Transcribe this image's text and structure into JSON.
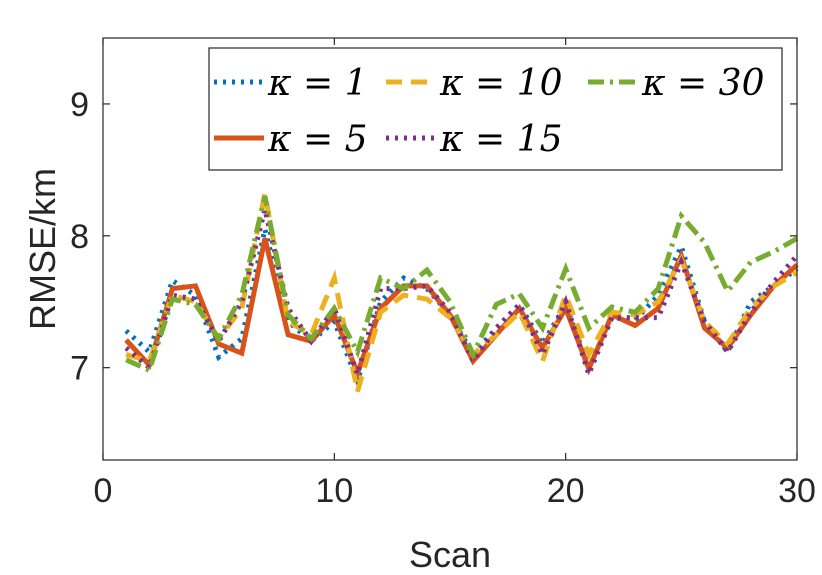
{
  "chart_data": {
    "type": "line",
    "title": "",
    "xlabel": "Scan",
    "ylabel": "RMSE/km",
    "xlim": [
      0,
      30
    ],
    "ylim": [
      6.3,
      9.5
    ],
    "xticks": [
      0,
      10,
      20,
      30
    ],
    "yticks": [
      7,
      8,
      9
    ],
    "grid": false,
    "legend_position": "top-right",
    "x": [
      1,
      2,
      3,
      4,
      5,
      6,
      7,
      8,
      9,
      10,
      11,
      12,
      13,
      14,
      15,
      16,
      17,
      18,
      19,
      20,
      21,
      22,
      23,
      24,
      25,
      26,
      27,
      28,
      29,
      30
    ],
    "series": [
      {
        "name": "κ = 1",
        "color": "#0072BD",
        "dash": "dotted",
        "values": [
          7.28,
          7.12,
          7.66,
          7.55,
          7.08,
          7.22,
          8.05,
          7.35,
          7.2,
          7.35,
          6.9,
          7.5,
          7.68,
          7.6,
          7.4,
          7.1,
          7.3,
          7.48,
          7.18,
          7.48,
          7.0,
          7.38,
          7.36,
          7.55,
          7.92,
          7.35,
          7.12,
          7.5,
          7.62,
          7.75
        ]
      },
      {
        "name": "κ = 5",
        "color": "#D95319",
        "dash": "solid",
        "values": [
          7.21,
          7.02,
          7.6,
          7.62,
          7.18,
          7.11,
          7.98,
          7.25,
          7.2,
          7.4,
          6.96,
          7.45,
          7.62,
          7.62,
          7.4,
          7.05,
          7.25,
          7.45,
          7.15,
          7.45,
          6.99,
          7.4,
          7.32,
          7.45,
          7.85,
          7.3,
          7.15,
          7.4,
          7.62,
          7.78
        ]
      },
      {
        "name": "κ = 10",
        "color": "#EDB120",
        "dash": "dashed",
        "values": [
          7.1,
          7.05,
          7.55,
          7.5,
          7.22,
          7.45,
          8.32,
          7.35,
          7.25,
          7.68,
          6.82,
          7.42,
          7.55,
          7.52,
          7.38,
          7.1,
          7.25,
          7.42,
          7.05,
          7.55,
          7.1,
          7.42,
          7.4,
          7.5,
          7.82,
          7.35,
          7.18,
          7.45,
          7.62,
          7.72
        ]
      },
      {
        "name": "κ = 15",
        "color": "#7E2F8E",
        "dash": "dotted",
        "values": [
          7.15,
          7.0,
          7.55,
          7.52,
          7.2,
          7.5,
          8.2,
          7.45,
          7.2,
          7.45,
          6.95,
          7.6,
          7.6,
          7.62,
          7.42,
          7.05,
          7.3,
          7.48,
          7.1,
          7.5,
          6.95,
          7.38,
          7.38,
          7.38,
          7.8,
          7.35,
          7.12,
          7.42,
          7.65,
          7.85
        ]
      },
      {
        "name": "κ = 30",
        "color": "#77AC30",
        "dash": "dashdot",
        "values": [
          7.06,
          6.98,
          7.52,
          7.48,
          7.22,
          7.55,
          8.3,
          7.4,
          7.22,
          7.45,
          7.12,
          7.68,
          7.6,
          7.74,
          7.5,
          7.1,
          7.48,
          7.56,
          7.3,
          7.75,
          7.3,
          7.46,
          7.42,
          7.6,
          8.15,
          7.95,
          7.58,
          7.8,
          7.88,
          7.98
        ]
      }
    ]
  }
}
